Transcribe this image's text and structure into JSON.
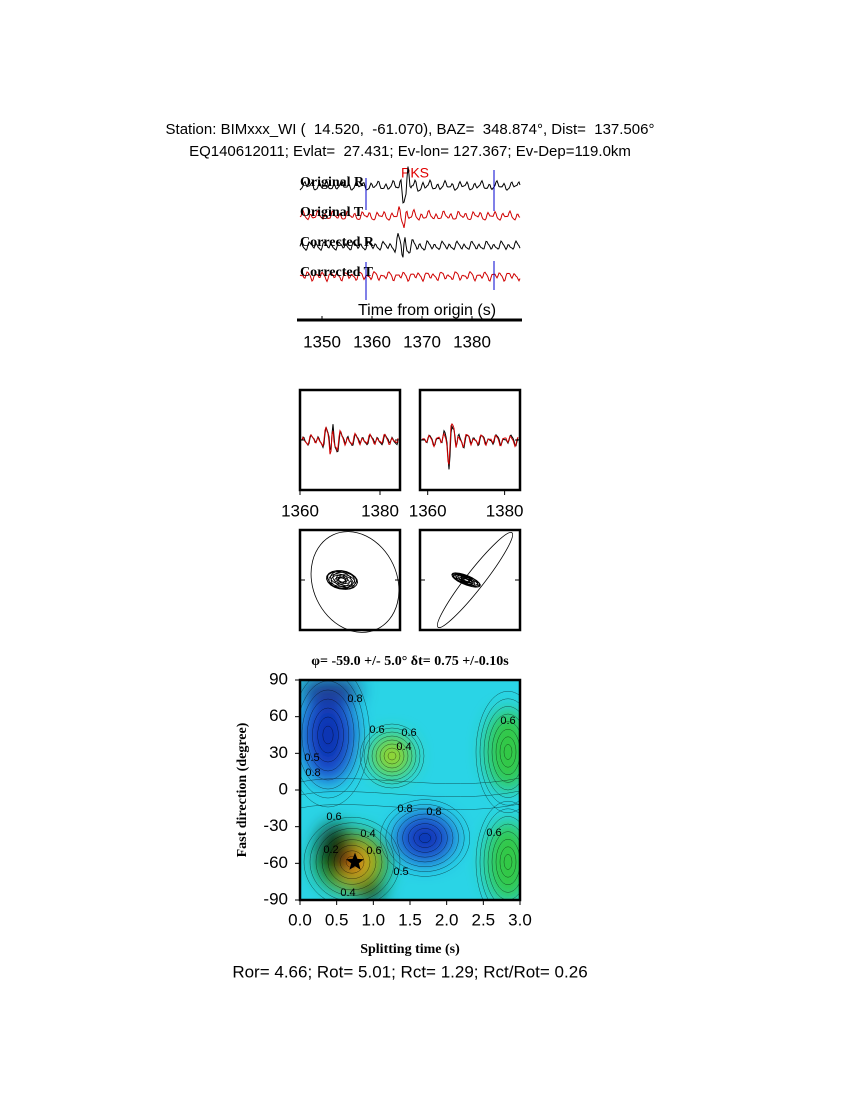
{
  "header": {
    "station": "Station: BIMxxx_WI (  14.520,  -61.070), BAZ=  348.874°, Dist=  137.506°",
    "event": "EQ140612011; Evlat=  27.431; Ev-lon= 127.367; Ev-Dep=119.0km"
  },
  "traces": {
    "labels": [
      "Original R",
      "Original T",
      "Corrected R",
      "Corrected T"
    ],
    "phase": "PKS",
    "xlabel": "Time from origin (s)",
    "xlim": [
      1345,
      1390
    ],
    "xticks": [
      1350,
      1360,
      1370,
      1380
    ]
  },
  "panels": [
    {
      "xlim": [
        1360,
        1385
      ],
      "xticks": [
        1360,
        1380
      ]
    },
    {
      "xlim": [
        1358,
        1384
      ],
      "xticks": [
        1360,
        1380
      ]
    }
  ],
  "grid_search": {
    "title": "φ= -59.0 +/- 5.0° δt= 0.75 +/-0.10s",
    "xlabel": "Splitting time (s)",
    "ylabel": "Fast direction (degree)",
    "xlim": [
      0,
      3
    ],
    "ylim": [
      -90,
      90
    ],
    "xticks": [
      {
        "value": 0,
        "label": "0.0"
      },
      0.5,
      {
        "value": 1,
        "label": "1.0"
      },
      1.5,
      {
        "value": 2,
        "label": "2.0"
      },
      2.5,
      {
        "value": 3,
        "label": "3.0"
      }
    ],
    "yticks": [
      -90,
      -60,
      -30,
      0,
      30,
      60,
      90
    ],
    "best": {
      "dt": 0.75,
      "phi": -59.0
    },
    "contour_labels": [
      "0.8",
      "0.6",
      "0.4",
      "0.6",
      "0.6",
      "0.5",
      "0.8",
      "0.8",
      "0.6",
      "0.6",
      "0.4",
      "0.2",
      "0.6",
      "0.5",
      "0.8",
      "0.4"
    ]
  },
  "footer": "Ror= 4.66; Rot= 5.01; Rct= 1.29; Rct/Rot= 0.26"
}
